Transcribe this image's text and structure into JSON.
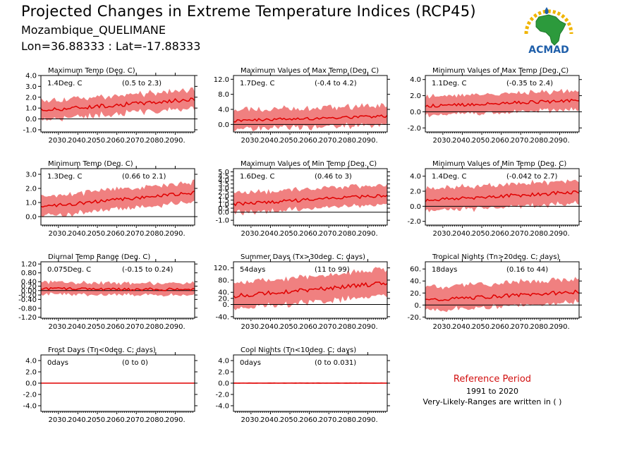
{
  "header": {
    "title": "Projected Changes in Extreme Temperature Indices (RCP45)",
    "subtitle": "Mozambique_QUELIMANE",
    "coords": "Lon=36.88333 : Lat=-17.88333",
    "logo_text": "ACMAD"
  },
  "reference": {
    "title": "Reference Period",
    "years": "1991 to 2020",
    "note": "Very-Likely-Ranges are written in ( )"
  },
  "colors": {
    "band": "#f08080",
    "line": "#e00000",
    "zero_line": "#000000",
    "title_red": "#d21010"
  },
  "chart_data": [
    {
      "type": "area",
      "title": "Maximum Temp (Deg. C)",
      "stat": "1.4Deg. C",
      "range": "(0.5 to 2.3)",
      "xlim": [
        2021,
        2100
      ],
      "ylim": [
        -1.2,
        4.0
      ],
      "yticks": [
        -1.0,
        0.0,
        1.0,
        2.0,
        3.0,
        4.0
      ],
      "ytick_labels": [
        "-1.0",
        "0.0",
        "1.0",
        "2.0",
        "3.0",
        "4.0"
      ],
      "xticks": [
        2030,
        2040,
        2050,
        2060,
        2070,
        2080,
        2090
      ],
      "xtick_labels": [
        "2030.",
        "2040.",
        "2050.",
        "2060.",
        "2070.",
        "2080.",
        "2090."
      ],
      "series": {
        "x_start": 2021,
        "x_end": 2100,
        "mean_start": 0.8,
        "mean_end": 1.8,
        "mean_noise": 0.18,
        "band_low": 0.65,
        "band_high": 0.7,
        "band_noise": 0.35
      }
    },
    {
      "type": "area",
      "title": "Maximum Values of Max Temp (Deg. C)",
      "stat": "1.7Deg. C",
      "range": "(-0.4 to 4.2)",
      "xlim": [
        2021,
        2100
      ],
      "ylim": [
        -2.0,
        13.0
      ],
      "yticks": [
        0.0,
        4.0,
        8.0,
        12.0
      ],
      "ytick_labels": [
        "0.0",
        "4.0",
        "8.0",
        "12.0"
      ],
      "xticks": [
        2030,
        2040,
        2050,
        2060,
        2070,
        2080,
        2090
      ],
      "xtick_labels": [
        "2030.",
        "2040.",
        "2050.",
        "2060.",
        "2070.",
        "2080.",
        "2090."
      ],
      "series": {
        "x_start": 2021,
        "x_end": 2100,
        "mean_start": 1.0,
        "mean_end": 2.2,
        "mean_noise": 0.4,
        "band_low": 1.6,
        "band_high": 2.2,
        "band_noise": 1.4
      }
    },
    {
      "type": "area",
      "title": "Minimum Values of Max Temp (Deg. C)",
      "stat": "1.1Deg. C",
      "range": "(-0.35 to 2.4)",
      "xlim": [
        2021,
        2100
      ],
      "ylim": [
        -2.5,
        4.5
      ],
      "yticks": [
        -2.0,
        0.0,
        2.0,
        4.0
      ],
      "ytick_labels": [
        "-2.0",
        "0.0",
        "2.0",
        "4.0"
      ],
      "xticks": [
        2030,
        2040,
        2050,
        2060,
        2070,
        2080,
        2090
      ],
      "xtick_labels": [
        "2030.",
        "2040.",
        "2050.",
        "2060.",
        "2070.",
        "2080.",
        "2090."
      ],
      "series": {
        "x_start": 2021,
        "x_end": 2100,
        "mean_start": 0.7,
        "mean_end": 1.4,
        "mean_noise": 0.2,
        "band_low": 0.9,
        "band_high": 1.0,
        "band_noise": 0.4
      }
    },
    {
      "type": "area",
      "title": "Minimum Temp (Deg. C)",
      "stat": "1.3Deg. C",
      "range": "(0.66 to 2.1)",
      "xlim": [
        2021,
        2100
      ],
      "ylim": [
        -0.6,
        3.4
      ],
      "yticks": [
        0.0,
        1.0,
        2.0,
        3.0
      ],
      "ytick_labels": [
        "0.0",
        "1.0",
        "2.0",
        "3.0"
      ],
      "xticks": [
        2030,
        2040,
        2050,
        2060,
        2070,
        2080,
        2090
      ],
      "xtick_labels": [
        "2030.",
        "2040.",
        "2050.",
        "2060.",
        "2070.",
        "2080.",
        "2090."
      ],
      "series": {
        "x_start": 2021,
        "x_end": 2100,
        "mean_start": 0.7,
        "mean_end": 1.7,
        "mean_noise": 0.12,
        "band_low": 0.55,
        "band_high": 0.6,
        "band_noise": 0.25
      }
    },
    {
      "type": "area",
      "title": "Maximum Values of Min Temp (Deg. C)",
      "stat": "1.6Deg. C",
      "range": "(0.46 to 3)",
      "xlim": [
        2021,
        2100
      ],
      "ylim": [
        -1.6,
        5.4
      ],
      "yticks": [
        -1.0,
        0.0,
        0.5,
        1.0,
        1.5,
        2.0,
        2.5,
        3.0,
        3.5,
        4.0,
        4.5,
        5.0
      ],
      "ytick_labels": [
        "-1.0",
        "0.0",
        "0.5",
        "1.0",
        "1.5",
        "2.0",
        "2.5",
        "3.0",
        "3.5",
        "4.0",
        "4.5",
        "5.0"
      ],
      "xticks": [
        2030,
        2040,
        2050,
        2060,
        2070,
        2080,
        2090
      ],
      "xtick_labels": [
        "2030.",
        "2040.",
        "2050.",
        "2060.",
        "2070.",
        "2080.",
        "2090."
      ],
      "series": {
        "x_start": 2021,
        "x_end": 2100,
        "mean_start": 1.0,
        "mean_end": 2.1,
        "mean_noise": 0.2,
        "band_low": 0.9,
        "band_high": 1.1,
        "band_noise": 0.45
      }
    },
    {
      "type": "area",
      "title": "Minimum Values of Min Temp (Deg. C)",
      "stat": "1.4Deg. C",
      "range": "(-0.042 to 2.7)",
      "xlim": [
        2021,
        2100
      ],
      "ylim": [
        -2.5,
        5.0
      ],
      "yticks": [
        -2.0,
        0.0,
        2.0,
        4.0
      ],
      "ytick_labels": [
        "-2.0",
        "0.0",
        "2.0",
        "4.0"
      ],
      "xticks": [
        2030,
        2040,
        2050,
        2060,
        2070,
        2080,
        2090
      ],
      "xtick_labels": [
        "2030.",
        "2040.",
        "2050.",
        "2060.",
        "2070.",
        "2080.",
        "2090."
      ],
      "series": {
        "x_start": 2021,
        "x_end": 2100,
        "mean_start": 0.8,
        "mean_end": 1.9,
        "mean_noise": 0.25,
        "band_low": 1.2,
        "band_high": 1.3,
        "band_noise": 0.5
      }
    },
    {
      "type": "area",
      "title": "Diurnal Temp Range (Deg. C)",
      "stat": "0.075Deg. C",
      "range": "(-0.15 to 0.24)",
      "xlim": [
        2021,
        2100
      ],
      "ylim": [
        -1.25,
        1.3
      ],
      "yticks": [
        -1.2,
        -0.8,
        -0.4,
        -0.2,
        0.0,
        0.2,
        0.4,
        0.8,
        1.2
      ],
      "ytick_labels": [
        "-1.20",
        "-0.80",
        "-0.40",
        "-0.20",
        "0.00",
        "0.20",
        "0.40",
        "0.80",
        "1.20"
      ],
      "xticks": [
        2030,
        2040,
        2050,
        2060,
        2070,
        2080,
        2090
      ],
      "xtick_labels": [
        "2030.",
        "2040.",
        "2050.",
        "2060.",
        "2070.",
        "2080.",
        "2090."
      ],
      "series": {
        "x_start": 2021,
        "x_end": 2100,
        "mean_start": 0.08,
        "mean_end": 0.05,
        "mean_noise": 0.06,
        "band_low": 0.2,
        "band_high": 0.22,
        "band_noise": 0.12
      }
    },
    {
      "type": "area",
      "title": "Summer Days (Tx>30deg. C; days)",
      "stat": "54days",
      "range": "(11 to 99)",
      "xlim": [
        2021,
        2100
      ],
      "ylim": [
        -45,
        140
      ],
      "yticks": [
        -40,
        0,
        20,
        40,
        80,
        120
      ],
      "ytick_labels": [
        "-40.",
        "0.",
        "20.",
        "40.",
        "80.",
        "120."
      ],
      "xticks": [
        2030,
        2040,
        2050,
        2060,
        2070,
        2080,
        2090
      ],
      "xtick_labels": [
        "2030.",
        "2040.",
        "2050.",
        "2060.",
        "2070.",
        "2080.",
        "2090."
      ],
      "series": {
        "x_start": 2021,
        "x_end": 2100,
        "mean_start": 28,
        "mean_end": 70,
        "mean_noise": 7,
        "band_low": 35,
        "band_high": 38,
        "band_noise": 12
      }
    },
    {
      "type": "area",
      "title": "Tropical Nights (Tn>20deg. C; days)",
      "stat": "18days",
      "range": "(0.16 to 44)",
      "xlim": [
        2021,
        2100
      ],
      "ylim": [
        -22,
        72
      ],
      "yticks": [
        -20,
        0,
        20,
        40,
        60
      ],
      "ytick_labels": [
        "-20.",
        "0.",
        "20.",
        "40.",
        "60."
      ],
      "xticks": [
        2030,
        2040,
        2050,
        2060,
        2070,
        2080,
        2090
      ],
      "xtick_labels": [
        "2030.",
        "2040.",
        "2050.",
        "2060.",
        "2070.",
        "2080.",
        "2090."
      ],
      "series": {
        "x_start": 2021,
        "x_end": 2100,
        "mean_start": 8,
        "mean_end": 22,
        "mean_noise": 3,
        "band_low": 14,
        "band_high": 18,
        "band_noise": 7
      }
    },
    {
      "type": "area",
      "title": "Frost Days (Tn<0deg. C; days)",
      "stat": "0days",
      "range": "(0 to 0)",
      "xlim": [
        2021,
        2100
      ],
      "ylim": [
        -5.0,
        5.0
      ],
      "yticks": [
        -4.0,
        -2.0,
        0.0,
        2.0,
        4.0
      ],
      "ytick_labels": [
        "-4.0",
        "-2.0",
        "0.0",
        "2.0",
        "4.0"
      ],
      "xticks": [
        2030,
        2040,
        2050,
        2060,
        2070,
        2080,
        2090
      ],
      "xtick_labels": [
        "2030.",
        "2040.",
        "2050.",
        "2060.",
        "2070.",
        "2080.",
        "2090."
      ],
      "series": {
        "x_start": 2021,
        "x_end": 2100,
        "mean_start": 0,
        "mean_end": 0,
        "mean_noise": 0,
        "band_low": 0.03,
        "band_high": 0.03,
        "band_noise": 0
      }
    },
    {
      "type": "area",
      "title": "Cool Nights (Tn<10deg. C; days)",
      "stat": "0days",
      "range": "(0 to 0.031)",
      "xlim": [
        2021,
        2100
      ],
      "ylim": [
        -5.0,
        5.0
      ],
      "yticks": [
        -4.0,
        -2.0,
        0.0,
        2.0,
        4.0
      ],
      "ytick_labels": [
        "-4.0",
        "-2.0",
        "0.0",
        "2.0",
        "4.0"
      ],
      "xticks": [
        2030,
        2040,
        2050,
        2060,
        2070,
        2080,
        2090
      ],
      "xtick_labels": [
        "2030.",
        "2040.",
        "2050.",
        "2060.",
        "2070.",
        "2080.",
        "2090."
      ],
      "series": {
        "x_start": 2021,
        "x_end": 2100,
        "mean_start": 0,
        "mean_end": 0,
        "mean_noise": 0,
        "band_low": 0.05,
        "band_high": 0.08,
        "band_noise": 0.08
      }
    }
  ]
}
